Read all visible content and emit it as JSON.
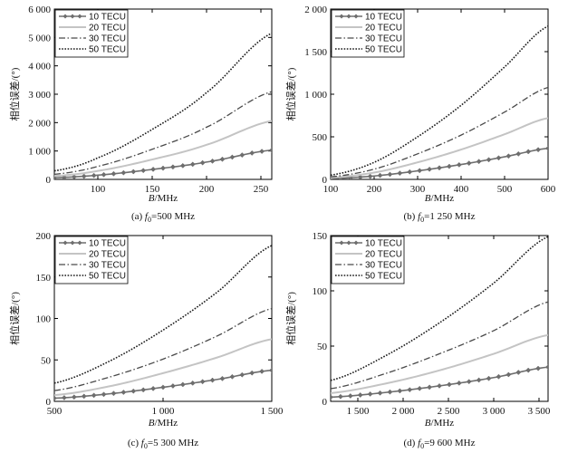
{
  "colors": {
    "s10": "#6e6e6e",
    "s20": "#c4c4c4",
    "s30": "#4a4a4a",
    "s50": "#1a1a1a",
    "axis": "#000000"
  },
  "legend": [
    "10 TECU",
    "20 TECU",
    "30 TECU",
    "50 TECU"
  ],
  "chart_data": [
    {
      "type": "line",
      "id": "a",
      "caption_prefix": "(a) ",
      "caption_var": "f",
      "caption_sub": "0",
      "caption_value": "=500 MHz",
      "xlabel_var": "B",
      "xlabel_unit": "/MHz",
      "ylabel": "相位误差/(°)",
      "xlim": [
        60,
        260
      ],
      "ylim": [
        0,
        6000
      ],
      "xticks": [
        100,
        150,
        200,
        250
      ],
      "xtick_labels": [
        "100",
        "150",
        "200",
        "250"
      ],
      "yticks": [
        0,
        1000,
        2000,
        3000,
        4000,
        5000,
        6000
      ],
      "ytick_labels": [
        "0",
        "1 000",
        "2 000",
        "3 000",
        "4 000",
        "5 000",
        "6 000"
      ],
      "x": [
        60,
        100,
        150,
        200,
        260
      ],
      "series": [
        {
          "name": "10 TECU",
          "values": [
            60,
            150,
            350,
            610,
            1030
          ]
        },
        {
          "name": "20 TECU",
          "values": [
            120,
            300,
            700,
            1220,
            2060
          ]
        },
        {
          "name": "30 TECU",
          "values": [
            180,
            460,
            1060,
            1840,
            3090
          ]
        },
        {
          "name": "50 TECU",
          "values": [
            300,
            760,
            1760,
            3060,
            5150
          ]
        }
      ]
    },
    {
      "type": "line",
      "id": "b",
      "caption_prefix": "(b) ",
      "caption_var": "f",
      "caption_sub": "0",
      "caption_value": "=1 250 MHz",
      "xlabel_var": "B",
      "xlabel_unit": "/MHz",
      "ylabel": "相位误差/(°)",
      "xlim": [
        100,
        600
      ],
      "ylim": [
        0,
        2000
      ],
      "xticks": [
        100,
        200,
        300,
        400,
        500,
        600
      ],
      "xtick_labels": [
        "100",
        "200",
        "300",
        "400",
        "500",
        "600"
      ],
      "yticks": [
        0,
        500,
        1000,
        1500,
        2000
      ],
      "ytick_labels": [
        "0",
        "500",
        "1 000",
        "1 500",
        "2 000"
      ],
      "x": [
        100,
        200,
        300,
        400,
        500,
        600
      ],
      "series": [
        {
          "name": "10 TECU",
          "values": [
            10,
            40,
            100,
            175,
            265,
            365
          ]
        },
        {
          "name": "20 TECU",
          "values": [
            20,
            80,
            200,
            350,
            530,
            720
          ]
        },
        {
          "name": "30 TECU",
          "values": [
            30,
            120,
            300,
            520,
            790,
            1080
          ]
        },
        {
          "name": "50 TECU",
          "values": [
            50,
            200,
            500,
            870,
            1320,
            1800
          ]
        }
      ]
    },
    {
      "type": "line",
      "id": "c",
      "caption_prefix": "(c) ",
      "caption_var": "f",
      "caption_sub": "0",
      "caption_value": "=5 300 MHz",
      "xlabel_var": "B",
      "xlabel_unit": "/MHz",
      "ylabel": "相位误差/(°)",
      "xlim": [
        500,
        1500
      ],
      "ylim": [
        0,
        200
      ],
      "xticks": [
        500,
        1000,
        1500
      ],
      "xtick_labels": [
        "500",
        "1 000",
        "1 500"
      ],
      "yticks": [
        0,
        50,
        100,
        150,
        200
      ],
      "ytick_labels": [
        "0",
        "50",
        "100",
        "150",
        "200"
      ],
      "x": [
        500,
        750,
        1000,
        1250,
        1500
      ],
      "series": [
        {
          "name": "10 TECU",
          "values": [
            3.8,
            9,
            17,
            26.5,
            37.5
          ]
        },
        {
          "name": "20 TECU",
          "values": [
            7.5,
            18,
            34,
            53,
            75
          ]
        },
        {
          "name": "30 TECU",
          "values": [
            13,
            29,
            51,
            79,
            112
          ]
        },
        {
          "name": "50 TECU",
          "values": [
            22,
            48,
            86,
            132,
            188
          ]
        }
      ]
    },
    {
      "type": "line",
      "id": "d",
      "caption_prefix": "(d) ",
      "caption_var": "f",
      "caption_sub": "0",
      "caption_value": "=9 600 MHz",
      "xlabel_var": "B",
      "xlabel_unit": "/MHz",
      "ylabel": "相位误差/(°)",
      "xlim": [
        1200,
        3600
      ],
      "ylim": [
        0,
        150
      ],
      "xticks": [
        1500,
        2000,
        2500,
        3000,
        3500
      ],
      "xtick_labels": [
        "1 500",
        "2 000",
        "2 500",
        "3 000",
        "3 500"
      ],
      "yticks": [
        0,
        50,
        100,
        150
      ],
      "ytick_labels": [
        "0",
        "50",
        "100",
        "150"
      ],
      "x": [
        1200,
        1800,
        2400,
        3000,
        3600
      ],
      "series": [
        {
          "name": "10 TECU",
          "values": [
            3.8,
            8,
            14,
            21.5,
            31
          ]
        },
        {
          "name": "20 TECU",
          "values": [
            7.5,
            16,
            28,
            43,
            60
          ]
        },
        {
          "name": "30 TECU",
          "values": [
            11.5,
            25,
            43,
            64,
            90
          ]
        },
        {
          "name": "50 TECU",
          "values": [
            19,
            41,
            71,
            107,
            149
          ]
        }
      ]
    }
  ]
}
